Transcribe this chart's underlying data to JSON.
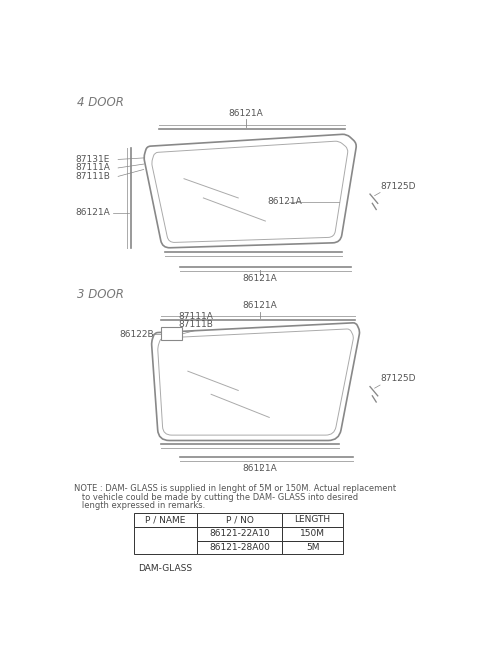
{
  "background_color": "#ffffff",
  "section1_label": "4 DOOR",
  "section2_label": "3 DOOR",
  "note_line1": "NOTE : DAM- GLASS is supplied in lenght of 5M or 150M. Actual replacement",
  "note_line2": "   to vehicle could be made by cutting the DAM- GLASS into desired",
  "note_line3": "   length expressed in remarks.",
  "table_headers": [
    "P / NAME",
    "P / NO",
    "LENGTH"
  ],
  "table_row1": [
    "DAM-GLASS",
    "86121-22A10",
    "150M"
  ],
  "table_row2": [
    "",
    "86121-28A00",
    "5M"
  ],
  "font_color": "#555555",
  "label_fontsize": 6.5,
  "section_fontsize": 8.5,
  "note_fontsize": 6.0,
  "line_color": "#888888",
  "line_color2": "#aaaaaa",
  "line_width": 1.2,
  "thin_line": 0.7
}
